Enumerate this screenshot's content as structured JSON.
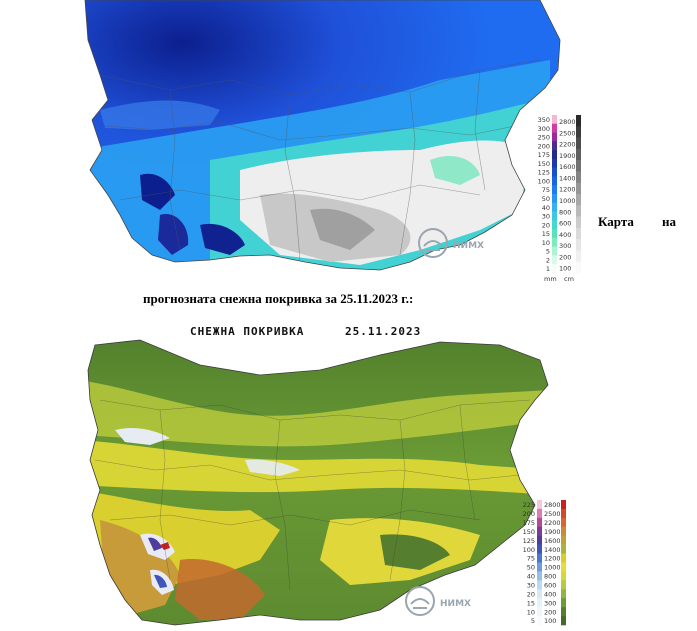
{
  "caption": {
    "part1": "Карта",
    "part2": "на",
    "line2": "прогнозната снежна покривка за 25.11.2023 г.:"
  },
  "precip_map": {
    "legend_left": [
      "350",
      "300",
      "250",
      "200",
      "175",
      "150",
      "125",
      "100",
      "75",
      "50",
      "40",
      "30",
      "20",
      "15",
      "10",
      "5",
      "2",
      "1"
    ],
    "legend_right": [
      "2800",
      "2500",
      "2200",
      "1900",
      "1600",
      "1400",
      "1200",
      "1000",
      "800",
      "600",
      "400",
      "300",
      "200",
      "100"
    ],
    "legend_left_colors": [
      "#f7b6cf",
      "#d23ba4",
      "#9a2a9b",
      "#4a2d8c",
      "#232a8e",
      "#1b3aa8",
      "#1a4fcb",
      "#1b63e4",
      "#1f7bf2",
      "#2a96f4",
      "#35b1f2",
      "#3dc8e8",
      "#45d8cf",
      "#59e3b8",
      "#7decbd",
      "#aef3d4",
      "#d8fae9",
      "#f4fdf8"
    ],
    "legend_right_colors": [
      "#2a2a2a",
      "#3c3c3c",
      "#4e4e4e",
      "#606060",
      "#727272",
      "#848484",
      "#969696",
      "#a8a8a8",
      "#bababa",
      "#cccccc",
      "#dadada",
      "#e6e6e6",
      "#f0f0f0",
      "#fafafa"
    ],
    "legend_units": [
      "mm",
      "cm"
    ],
    "logo_text": "НИМХ"
  },
  "snow_map": {
    "title": "СНЕЖНА ПОКРИВКА",
    "date": "25.11.2023",
    "legend_left": [
      "225",
      "200",
      "175",
      "150",
      "125",
      "100",
      "75",
      "50",
      "40",
      "30",
      "20",
      "15",
      "10",
      "5"
    ],
    "legend_right": [
      "2800",
      "2500",
      "2200",
      "1900",
      "1600",
      "1400",
      "1200",
      "1000",
      "800",
      "600",
      "400",
      "300",
      "200",
      "100"
    ],
    "legend_left_colors": [
      "#f6c6dc",
      "#e07ab3",
      "#b44a9c",
      "#7f3a98",
      "#503c9c",
      "#3f55b8",
      "#4b78cf",
      "#6e9ddd",
      "#97bfe8",
      "#bcd9f0",
      "#d8e9f6",
      "#e7f1f9",
      "#f1f6fb",
      "#f9fbfd"
    ],
    "legend_right_colors": [
      "#c8201e",
      "#d3462a",
      "#d8642f",
      "#c98a3a",
      "#b9a43c",
      "#a8b53a",
      "#d8cf2c",
      "#e6de35",
      "#d6d83a",
      "#b5cc3e",
      "#8fb73c",
      "#6b9c36",
      "#557f2e",
      "#456a28"
    ],
    "logo_text": "НИМХ"
  }
}
